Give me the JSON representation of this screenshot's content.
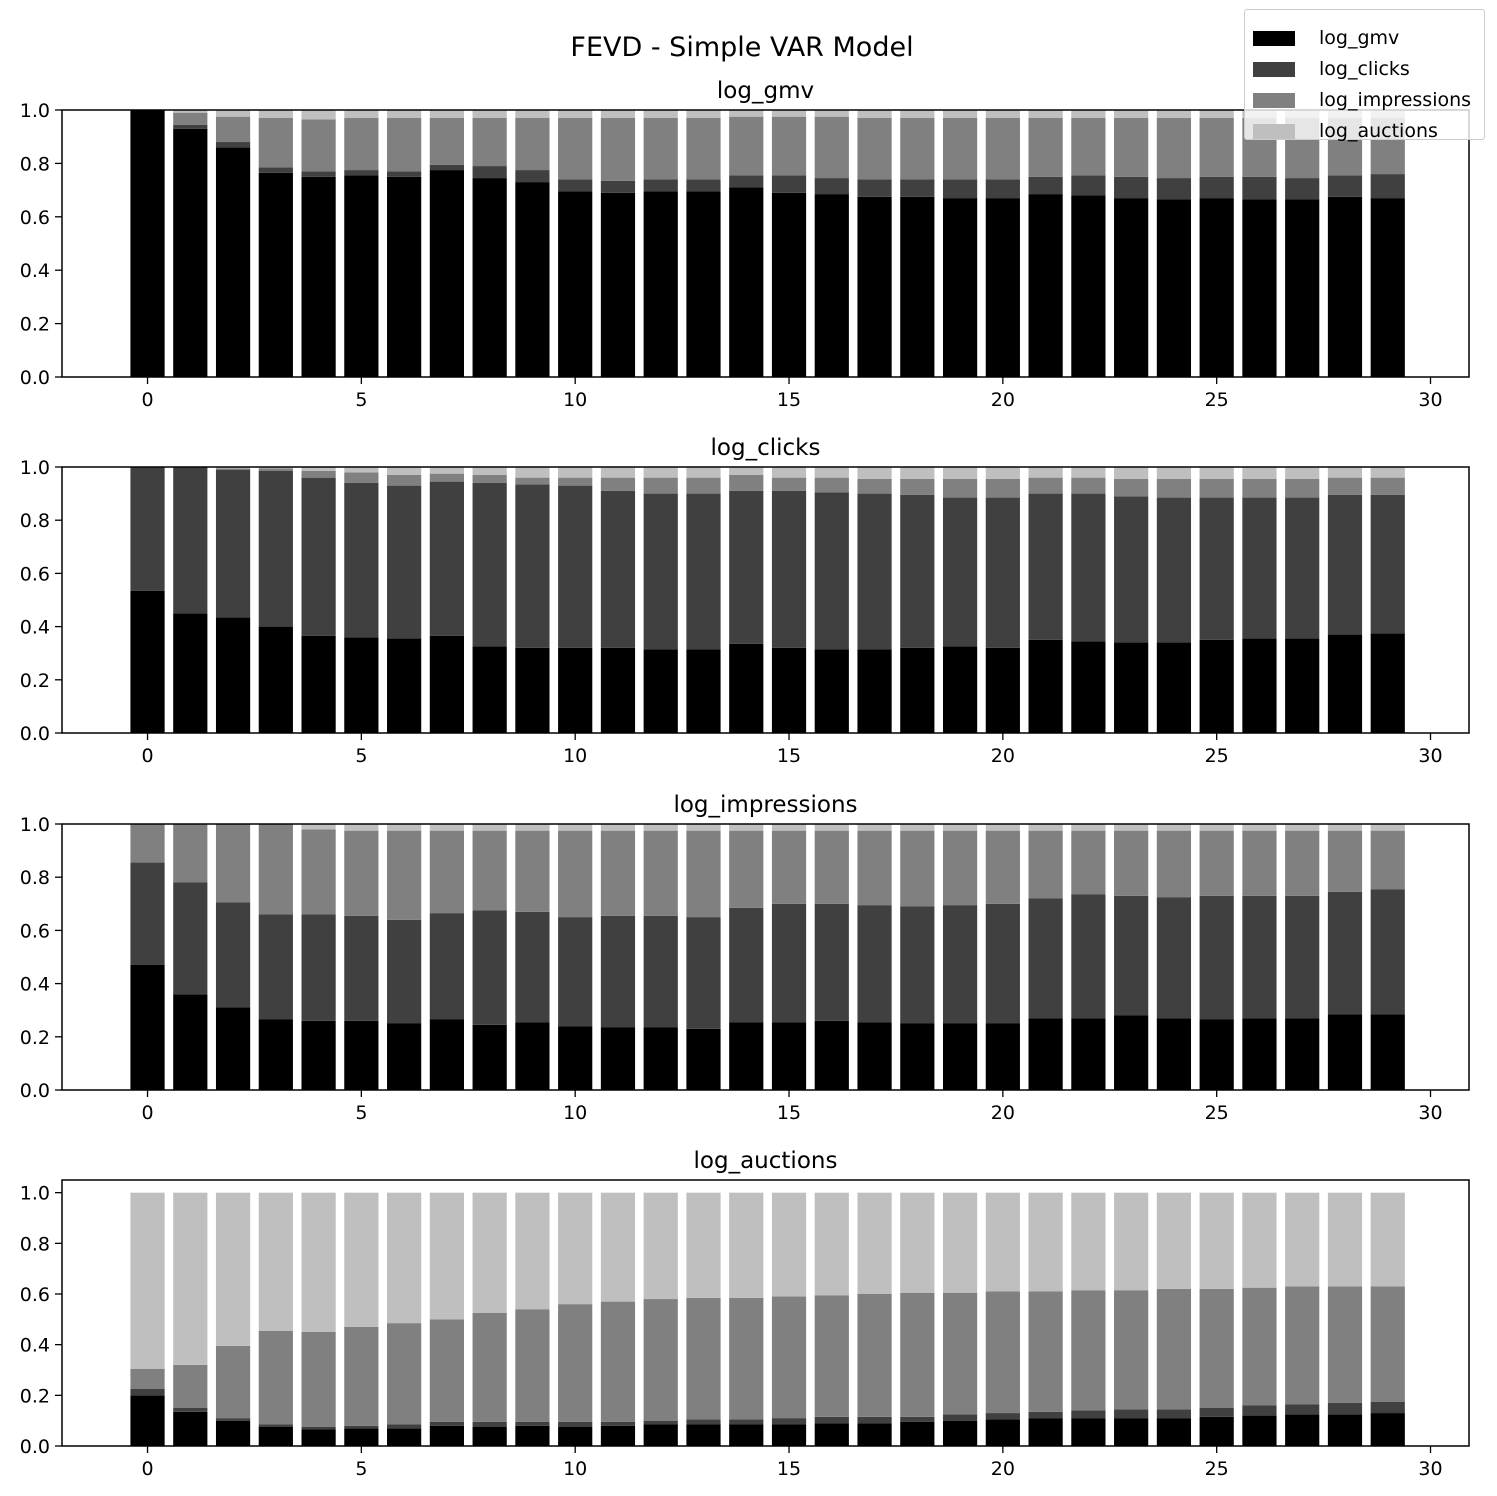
{
  "figure": {
    "title": "FEVD - Simple VAR Model"
  },
  "chart_data": {
    "type": "bar",
    "stacked": true,
    "colors": [
      "#000000",
      "#404040",
      "#808080",
      "#bfbfbf"
    ],
    "legend": {
      "placement": "top-right",
      "entries": [
        "log_gmv",
        "log_clicks",
        "log_impressions",
        "log_auctions"
      ]
    },
    "x": [
      0,
      1,
      2,
      3,
      4,
      5,
      6,
      7,
      8,
      9,
      10,
      11,
      12,
      13,
      14,
      15,
      16,
      17,
      18,
      19,
      20,
      21,
      22,
      23,
      24,
      25,
      26,
      27,
      28,
      29
    ],
    "xticks": [
      "0",
      "5",
      "10",
      "15",
      "20",
      "25",
      "30"
    ],
    "xlim": [
      -2,
      30.9
    ],
    "ylim": [
      0,
      1
    ],
    "panels": [
      {
        "title": "log_gmv",
        "yticks": [
          "0.0",
          "0.2",
          "0.4",
          "0.6",
          "0.8",
          "1.0"
        ],
        "series": [
          {
            "name": "log_gmv",
            "values": [
              1.0,
              0.93,
              0.86,
              0.765,
              0.75,
              0.755,
              0.75,
              0.775,
              0.745,
              0.73,
              0.695,
              0.69,
              0.695,
              0.695,
              0.71,
              0.69,
              0.685,
              0.675,
              0.675,
              0.67,
              0.67,
              0.685,
              0.68,
              0.67,
              0.665,
              0.67,
              0.665,
              0.665,
              0.675,
              0.67
            ]
          },
          {
            "name": "log_clicks",
            "values": [
              0.0,
              0.015,
              0.02,
              0.02,
              0.02,
              0.02,
              0.02,
              0.02,
              0.045,
              0.045,
              0.045,
              0.045,
              0.045,
              0.045,
              0.045,
              0.065,
              0.06,
              0.065,
              0.065,
              0.07,
              0.07,
              0.065,
              0.075,
              0.08,
              0.08,
              0.08,
              0.085,
              0.08,
              0.08,
              0.09
            ]
          },
          {
            "name": "log_impressions",
            "values": [
              0.0,
              0.045,
              0.095,
              0.185,
              0.195,
              0.195,
              0.2,
              0.175,
              0.18,
              0.195,
              0.23,
              0.235,
              0.23,
              0.23,
              0.22,
              0.22,
              0.23,
              0.23,
              0.23,
              0.23,
              0.23,
              0.22,
              0.215,
              0.22,
              0.225,
              0.22,
              0.22,
              0.225,
              0.215,
              0.21
            ]
          },
          {
            "name": "log_auctions",
            "values": [
              0.0,
              0.01,
              0.025,
              0.03,
              0.035,
              0.03,
              0.03,
              0.03,
              0.03,
              0.03,
              0.03,
              0.03,
              0.03,
              0.03,
              0.025,
              0.025,
              0.025,
              0.03,
              0.03,
              0.03,
              0.03,
              0.03,
              0.03,
              0.03,
              0.03,
              0.03,
              0.03,
              0.03,
              0.03,
              0.03
            ]
          }
        ]
      },
      {
        "title": "log_clicks",
        "yticks": [
          "0.0",
          "0.2",
          "0.4",
          "0.6",
          "0.8",
          "1.0"
        ],
        "series": [
          {
            "name": "log_gmv",
            "values": [
              0.535,
              0.45,
              0.435,
              0.4,
              0.365,
              0.36,
              0.355,
              0.365,
              0.325,
              0.32,
              0.32,
              0.32,
              0.315,
              0.315,
              0.335,
              0.32,
              0.315,
              0.315,
              0.32,
              0.325,
              0.32,
              0.35,
              0.345,
              0.34,
              0.34,
              0.35,
              0.355,
              0.355,
              0.37,
              0.375
            ]
          },
          {
            "name": "log_clicks",
            "values": [
              0.465,
              0.55,
              0.555,
              0.585,
              0.595,
              0.58,
              0.575,
              0.58,
              0.615,
              0.615,
              0.61,
              0.59,
              0.585,
              0.585,
              0.575,
              0.59,
              0.59,
              0.585,
              0.575,
              0.56,
              0.565,
              0.55,
              0.555,
              0.55,
              0.545,
              0.535,
              0.53,
              0.53,
              0.525,
              0.52
            ]
          },
          {
            "name": "log_impressions",
            "values": [
              0.0,
              0.0,
              0.005,
              0.01,
              0.025,
              0.04,
              0.04,
              0.03,
              0.03,
              0.025,
              0.03,
              0.05,
              0.06,
              0.06,
              0.06,
              0.05,
              0.055,
              0.055,
              0.06,
              0.07,
              0.07,
              0.06,
              0.06,
              0.065,
              0.07,
              0.07,
              0.07,
              0.07,
              0.065,
              0.065
            ]
          },
          {
            "name": "log_auctions",
            "values": [
              0.0,
              0.0,
              0.005,
              0.005,
              0.015,
              0.02,
              0.03,
              0.025,
              0.03,
              0.04,
              0.04,
              0.04,
              0.04,
              0.04,
              0.03,
              0.04,
              0.04,
              0.045,
              0.045,
              0.045,
              0.045,
              0.04,
              0.04,
              0.045,
              0.045,
              0.045,
              0.045,
              0.045,
              0.04,
              0.04
            ]
          }
        ]
      },
      {
        "title": "log_impressions",
        "yticks": [
          "0.0",
          "0.2",
          "0.4",
          "0.6",
          "0.8",
          "1.0"
        ],
        "series": [
          {
            "name": "log_gmv",
            "values": [
              0.47,
              0.36,
              0.31,
              0.265,
              0.26,
              0.26,
              0.25,
              0.265,
              0.245,
              0.255,
              0.24,
              0.235,
              0.235,
              0.23,
              0.255,
              0.255,
              0.26,
              0.255,
              0.25,
              0.25,
              0.25,
              0.27,
              0.27,
              0.28,
              0.27,
              0.265,
              0.27,
              0.27,
              0.285,
              0.285
            ]
          },
          {
            "name": "log_clicks",
            "values": [
              0.385,
              0.42,
              0.395,
              0.395,
              0.4,
              0.395,
              0.39,
              0.4,
              0.43,
              0.415,
              0.41,
              0.42,
              0.42,
              0.42,
              0.43,
              0.445,
              0.44,
              0.44,
              0.44,
              0.445,
              0.45,
              0.45,
              0.465,
              0.45,
              0.455,
              0.465,
              0.46,
              0.46,
              0.46,
              0.47
            ]
          },
          {
            "name": "log_impressions",
            "values": [
              0.145,
              0.22,
              0.295,
              0.34,
              0.32,
              0.32,
              0.335,
              0.31,
              0.3,
              0.305,
              0.325,
              0.32,
              0.32,
              0.325,
              0.29,
              0.275,
              0.275,
              0.28,
              0.285,
              0.28,
              0.275,
              0.255,
              0.24,
              0.245,
              0.25,
              0.245,
              0.245,
              0.245,
              0.23,
              0.22
            ]
          },
          {
            "name": "log_auctions",
            "values": [
              0.0,
              0.0,
              0.0,
              0.0,
              0.02,
              0.025,
              0.025,
              0.025,
              0.025,
              0.025,
              0.025,
              0.025,
              0.025,
              0.025,
              0.025,
              0.025,
              0.025,
              0.025,
              0.025,
              0.025,
              0.025,
              0.025,
              0.025,
              0.025,
              0.025,
              0.025,
              0.025,
              0.025,
              0.025,
              0.025
            ]
          }
        ]
      },
      {
        "title": "log_auctions",
        "yticks": [
          "0.0",
          "0.2",
          "0.4",
          "0.6",
          "0.8",
          "1.0"
        ],
        "ylim": [
          0,
          1.05
        ],
        "series": [
          {
            "name": "log_gmv",
            "values": [
              0.2,
              0.135,
              0.1,
              0.075,
              0.065,
              0.07,
              0.07,
              0.08,
              0.075,
              0.08,
              0.075,
              0.08,
              0.085,
              0.085,
              0.085,
              0.085,
              0.09,
              0.09,
              0.095,
              0.1,
              0.105,
              0.11,
              0.11,
              0.11,
              0.11,
              0.115,
              0.12,
              0.125,
              0.125,
              0.13
            ]
          },
          {
            "name": "log_clicks",
            "values": [
              0.025,
              0.015,
              0.01,
              0.01,
              0.01,
              0.01,
              0.015,
              0.015,
              0.02,
              0.015,
              0.02,
              0.015,
              0.015,
              0.02,
              0.02,
              0.025,
              0.025,
              0.025,
              0.02,
              0.025,
              0.025,
              0.025,
              0.03,
              0.035,
              0.035,
              0.035,
              0.04,
              0.04,
              0.045,
              0.045
            ]
          },
          {
            "name": "log_impressions",
            "values": [
              0.08,
              0.17,
              0.285,
              0.37,
              0.375,
              0.39,
              0.4,
              0.405,
              0.43,
              0.445,
              0.465,
              0.475,
              0.48,
              0.48,
              0.48,
              0.48,
              0.48,
              0.485,
              0.49,
              0.48,
              0.48,
              0.475,
              0.475,
              0.47,
              0.475,
              0.47,
              0.465,
              0.465,
              0.46,
              0.455
            ]
          },
          {
            "name": "log_auctions",
            "values": [
              0.695,
              0.68,
              0.605,
              0.545,
              0.55,
              0.53,
              0.515,
              0.5,
              0.475,
              0.46,
              0.44,
              0.43,
              0.42,
              0.415,
              0.415,
              0.41,
              0.405,
              0.4,
              0.395,
              0.395,
              0.39,
              0.39,
              0.385,
              0.385,
              0.38,
              0.38,
              0.375,
              0.37,
              0.37,
              0.37
            ]
          }
        ]
      }
    ]
  }
}
